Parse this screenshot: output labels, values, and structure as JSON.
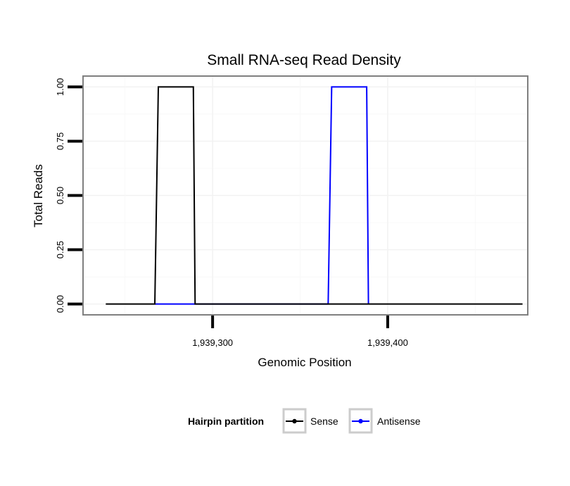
{
  "chart_data": {
    "type": "line",
    "title": "Small RNA-seq Read Density",
    "xlabel": "Genomic Position",
    "ylabel": "Total Reads",
    "xlim": [
      1939226,
      1939480
    ],
    "ylim": [
      -0.05,
      1.05
    ],
    "x_ticks": [
      {
        "value": 1939300,
        "label": "1,939,300"
      },
      {
        "value": 1939400,
        "label": "1,939,400"
      }
    ],
    "y_ticks": [
      {
        "value": 0.0,
        "label": "0.00"
      },
      {
        "value": 0.25,
        "label": "0.25"
      },
      {
        "value": 0.5,
        "label": "0.50"
      },
      {
        "value": 0.75,
        "label": "0.75"
      },
      {
        "value": 1.0,
        "label": "1.00"
      }
    ],
    "grid": true,
    "legend": {
      "title": "Hairpin partition",
      "position": "bottom"
    },
    "series": [
      {
        "name": "Sense",
        "color": "#000000",
        "x": [
          1939239,
          1939267,
          1939269,
          1939289,
          1939290,
          1939477
        ],
        "y": [
          0,
          0,
          1,
          1,
          0,
          0
        ]
      },
      {
        "name": "Antisense",
        "color": "#0000ff",
        "x": [
          1939267,
          1939290,
          1939366,
          1939368,
          1939388,
          1939389
        ],
        "y": [
          0,
          0,
          0,
          1,
          1,
          0
        ]
      }
    ]
  }
}
